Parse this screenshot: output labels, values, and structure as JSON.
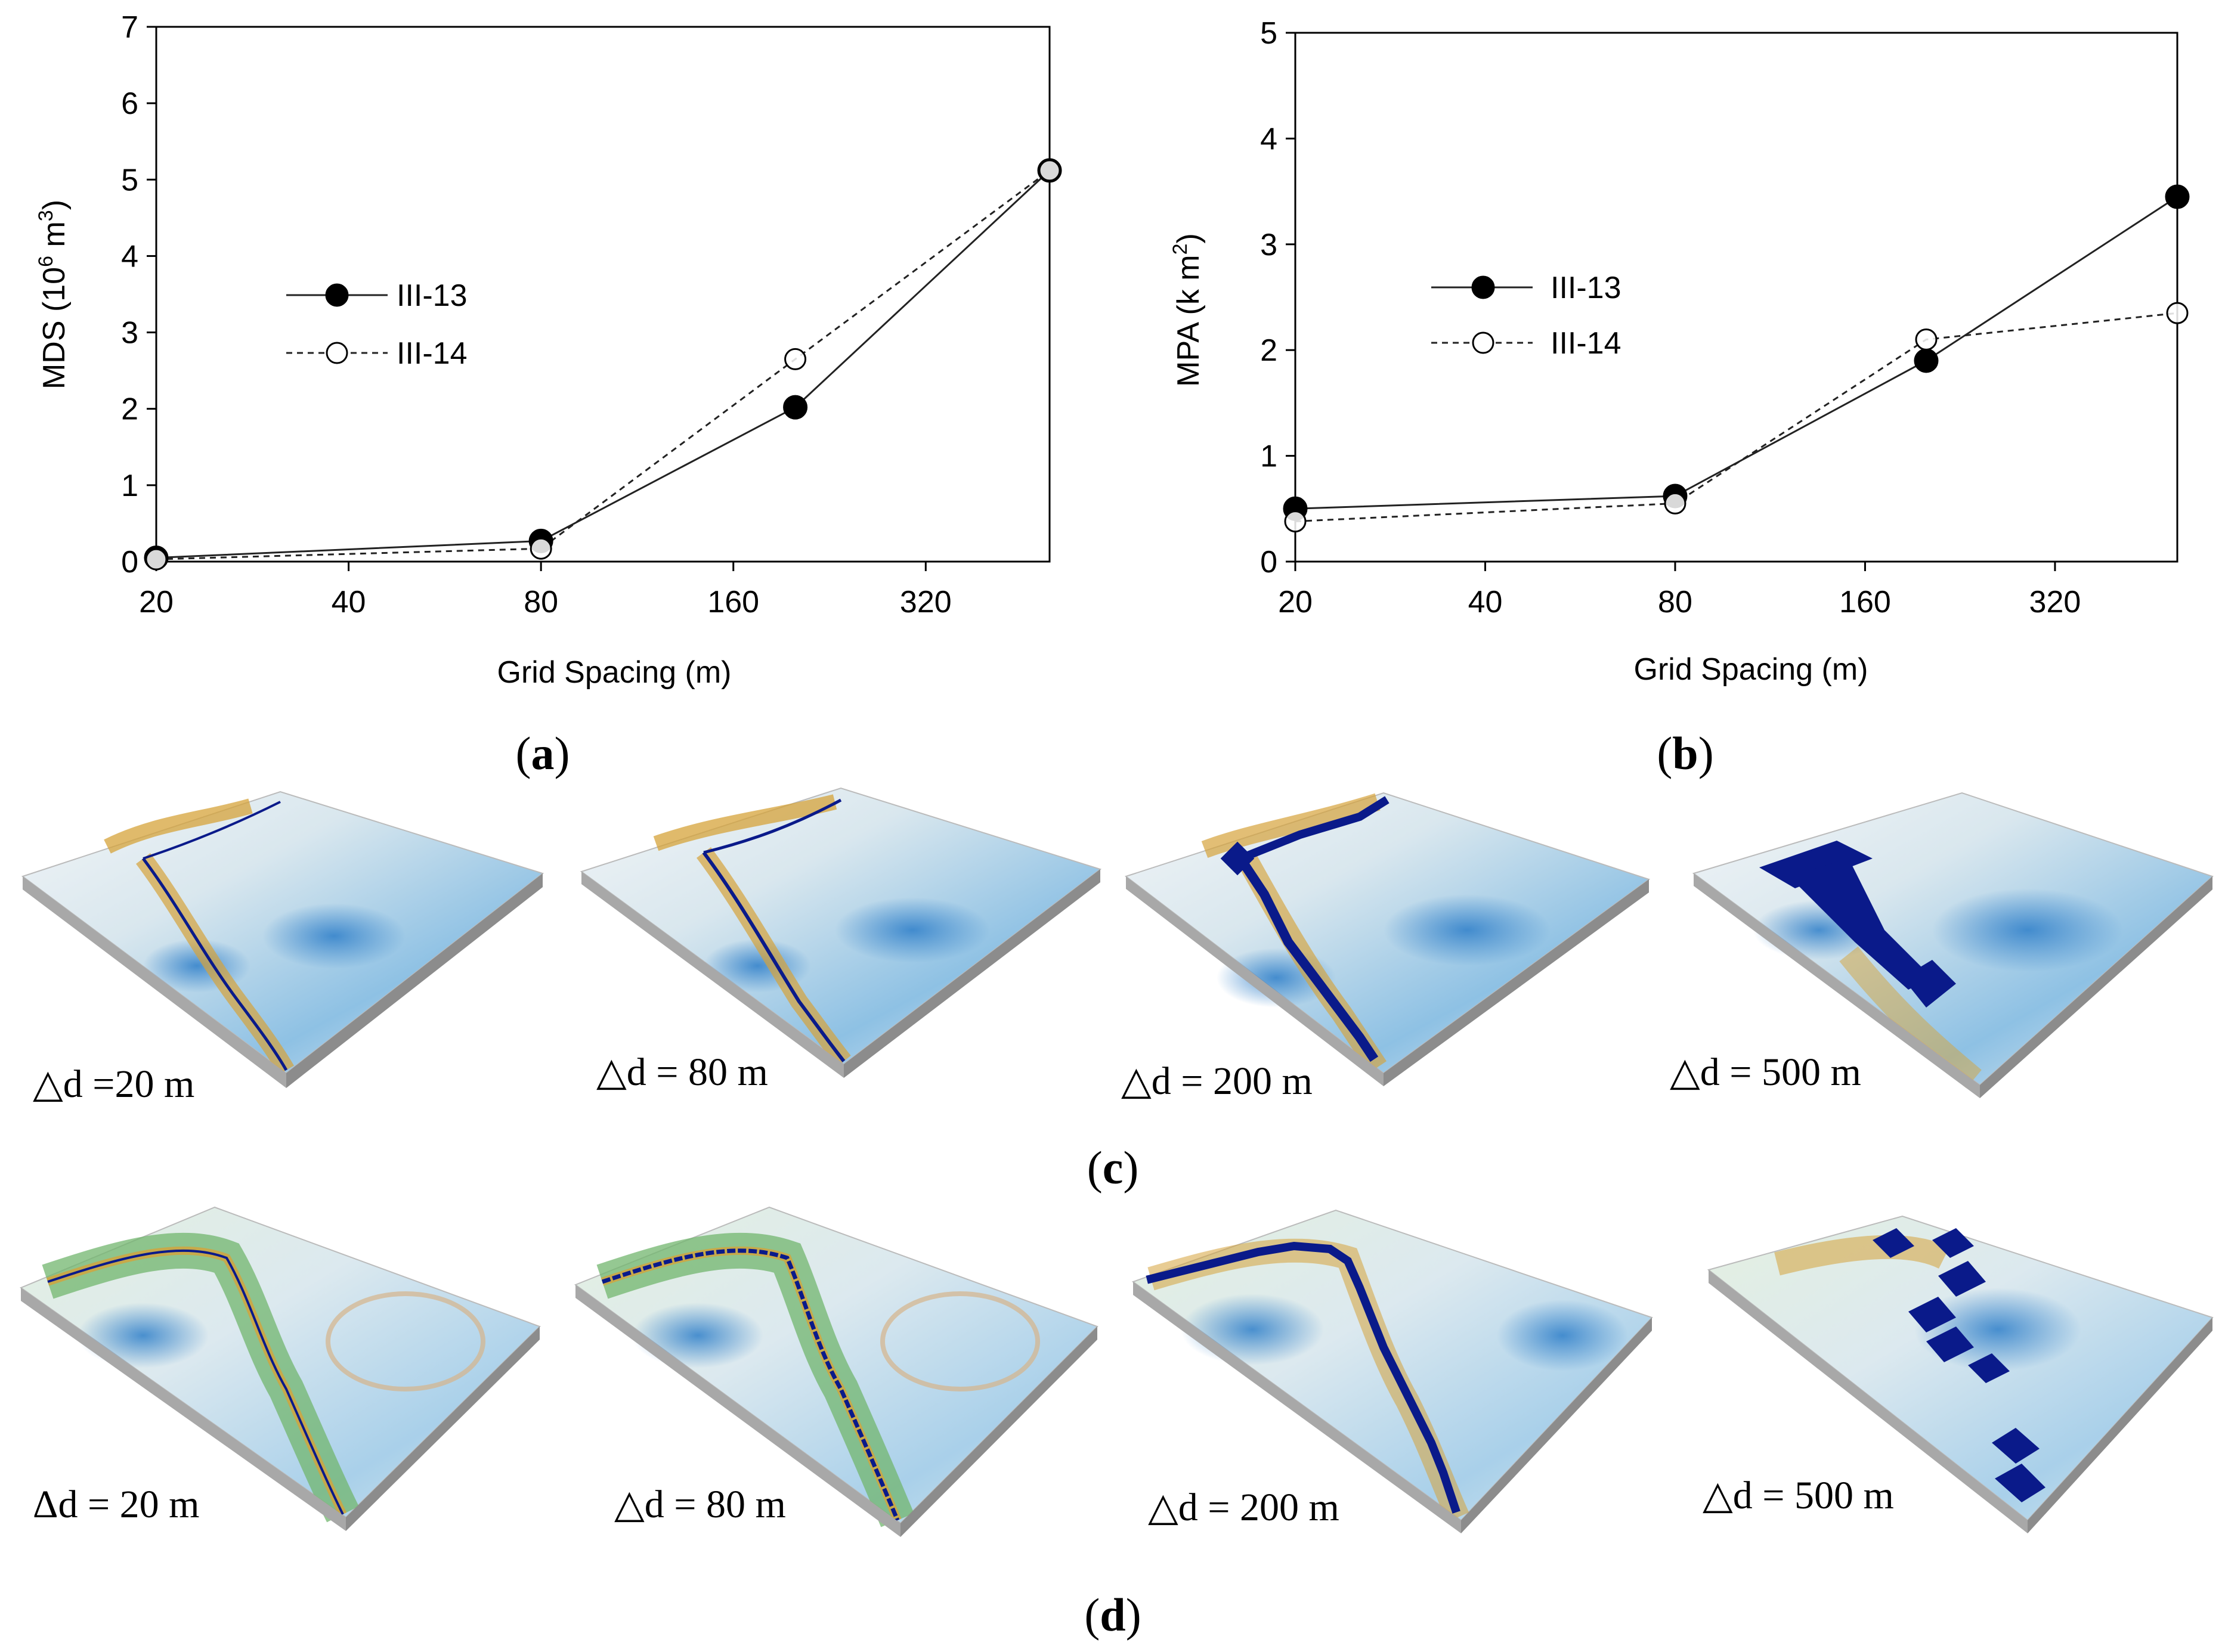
{
  "chart_data": [
    {
      "type": "line",
      "panel": "a",
      "xlabel": "Grid Spacing (m)",
      "ylabel": "MDS (10",
      "ylabel_sup1": "6",
      "ylabel_mid": " m",
      "ylabel_sup2": "3",
      "ylabel_end": ")",
      "x_scale": "log2",
      "x_ticks": [
        20,
        40,
        80,
        160,
        320
      ],
      "x_tick_labels": [
        "20",
        "40",
        "80",
        "160",
        "320"
      ],
      "xlim": [
        20,
        500
      ],
      "ylim": [
        0,
        7
      ],
      "y_ticks": [
        0,
        1,
        2,
        3,
        4,
        5,
        6,
        7
      ],
      "y_tick_labels": [
        "0",
        "1",
        "2",
        "3",
        "4",
        "5",
        "6",
        "7"
      ],
      "legend_position": "middle-left",
      "series": [
        {
          "name": "III-13",
          "marker": "filled-circle",
          "line": "solid",
          "x": [
            20,
            80,
            200,
            500
          ],
          "values": [
            0.05,
            0.27,
            2.02,
            5.12
          ]
        },
        {
          "name": "III-14",
          "marker": "open-circle",
          "line": "dashed",
          "x": [
            20,
            80,
            200,
            500
          ],
          "values": [
            0.03,
            0.17,
            2.65,
            5.12
          ]
        }
      ]
    },
    {
      "type": "line",
      "panel": "b",
      "xlabel": "Grid Spacing (m)",
      "ylabel": "MPA (k m",
      "ylabel_sup1": "2",
      "ylabel_mid": "",
      "ylabel_sup2": "",
      "ylabel_end": ")",
      "x_scale": "log2",
      "x_ticks": [
        20,
        40,
        80,
        160,
        320
      ],
      "x_tick_labels": [
        "20",
        "40",
        "80",
        "160",
        "320"
      ],
      "xlim": [
        20,
        500
      ],
      "ylim": [
        0,
        5
      ],
      "y_ticks": [
        0,
        1,
        2,
        3,
        4,
        5
      ],
      "y_tick_labels": [
        "0",
        "1",
        "2",
        "3",
        "4",
        "5"
      ],
      "legend_position": "middle-left",
      "series": [
        {
          "name": "III-13",
          "marker": "filled-circle",
          "line": "solid",
          "x": [
            20,
            80,
            200,
            500
          ],
          "values": [
            0.5,
            0.62,
            1.9,
            3.45
          ]
        },
        {
          "name": "III-14",
          "marker": "open-circle",
          "line": "dashed",
          "x": [
            20,
            80,
            200,
            500
          ],
          "values": [
            0.38,
            0.55,
            2.1,
            2.35
          ]
        }
      ]
    }
  ],
  "panels": {
    "a": "a",
    "b": "b",
    "c": "c",
    "d": "d"
  },
  "terrain": {
    "c": [
      {
        "label": "△d =20 m",
        "river": "thin"
      },
      {
        "label": "△d = 80 m",
        "river": "thin"
      },
      {
        "label": "△d = 200 m",
        "river": "blocky"
      },
      {
        "label": "△d = 500 m",
        "river": "coarse"
      }
    ],
    "d": [
      {
        "label": "Δd = 20 m",
        "river": "thin"
      },
      {
        "label": "△d = 80 m",
        "river": "thin"
      },
      {
        "label": "△d = 200 m",
        "river": "blocky"
      },
      {
        "label": "△d = 500 m",
        "river": "coarse"
      }
    ]
  },
  "colors": {
    "line": "#222222",
    "terrain_light": "#e6eef2",
    "terrain_blue": "#3d8fd0",
    "terrain_gold": "#d6a33a",
    "terrain_green": "#72b56d",
    "river": "#0a1a8a",
    "base_side": "#a8a8a8",
    "base_front": "#8c8c8c"
  }
}
